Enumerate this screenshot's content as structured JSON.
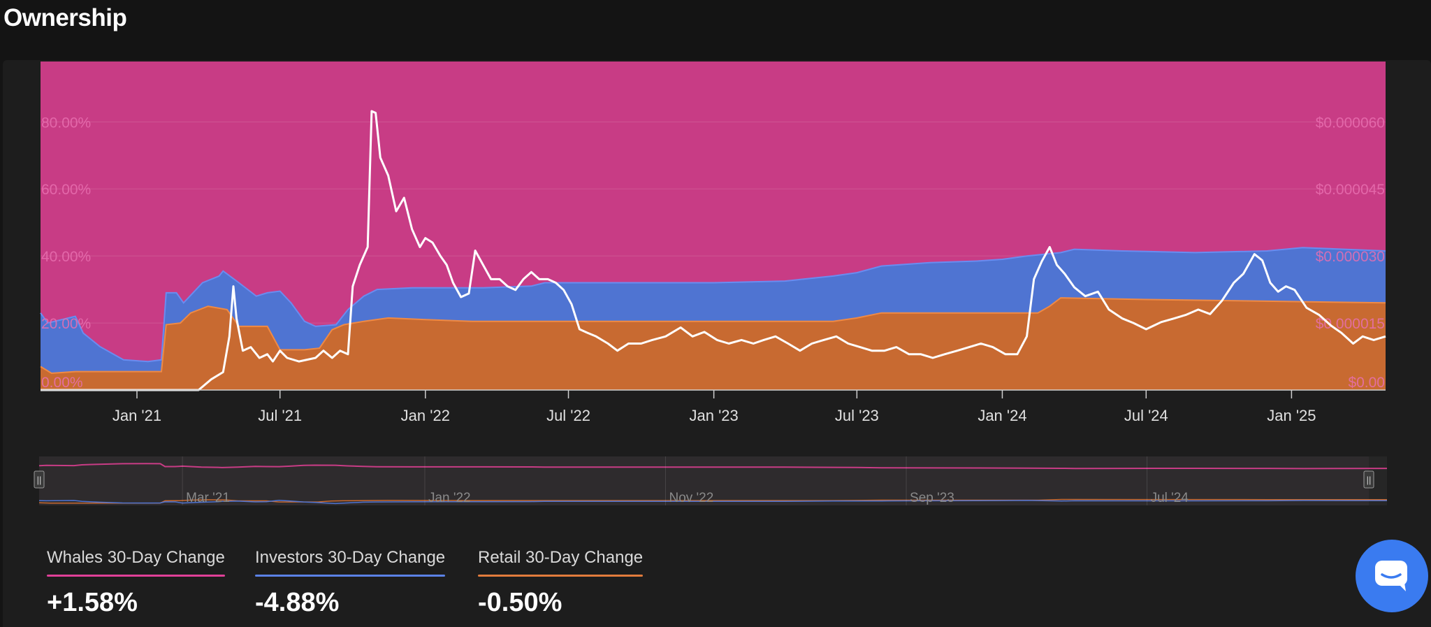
{
  "page_title": "Ownership",
  "colors": {
    "whales": "#c83c85",
    "investors": "#4f74d2",
    "retail": "#c86a31",
    "price": "#ffffff",
    "whales_underline": "#e04098",
    "investors_underline": "#5b82e6",
    "retail_underline": "#e27b3c",
    "left_axis_text": "#e86fb0",
    "right_axis_text": "#e86fb0",
    "chat_button": "#3a7bf0"
  },
  "chart_data": {
    "type": "area",
    "stacking": "stacked-percent",
    "x_ticks": [
      "Jan '21",
      "Jul '21",
      "Jan '22",
      "Jul '22",
      "Jan '23",
      "Jul '23",
      "Jan '24",
      "Jul '24",
      "Jan '25"
    ],
    "x_range": [
      "2020-09-01",
      "2025-04-30"
    ],
    "y_left_ticks": [
      "0.00%",
      "20.00%",
      "40.00%",
      "60.00%",
      "80.00%"
    ],
    "y_left_range": [
      0,
      98
    ],
    "y_right_ticks": [
      "$0.00",
      "$0.000015",
      "$0.000030",
      "$0.000045",
      "$0.000060"
    ],
    "y_right_range": [
      0,
      7.35e-05
    ],
    "grid": true,
    "retail_top_pct": [
      [
        "2020-09-01",
        7
      ],
      [
        "2020-09-15",
        5
      ],
      [
        "2020-10-15",
        5.5
      ],
      [
        "2020-12-01",
        5.5
      ],
      [
        "2021-02-01",
        5.5
      ],
      [
        "2021-02-07",
        19.5
      ],
      [
        "2021-02-25",
        20
      ],
      [
        "2021-03-10",
        23
      ],
      [
        "2021-04-01",
        25
      ],
      [
        "2021-04-25",
        24
      ],
      [
        "2021-05-10",
        19
      ],
      [
        "2021-06-15",
        19
      ],
      [
        "2021-07-01",
        12
      ],
      [
        "2021-08-01",
        12
      ],
      [
        "2021-08-20",
        12.5
      ],
      [
        "2021-09-05",
        18
      ],
      [
        "2021-09-20",
        19.5
      ],
      [
        "2021-10-15",
        20.5
      ],
      [
        "2021-11-15",
        21.5
      ],
      [
        "2022-01-01",
        21
      ],
      [
        "2022-03-01",
        20.5
      ],
      [
        "2022-06-01",
        20.5
      ],
      [
        "2022-09-01",
        20.5
      ],
      [
        "2023-01-01",
        20.5
      ],
      [
        "2023-03-01",
        20.5
      ],
      [
        "2023-06-01",
        20.5
      ],
      [
        "2023-07-01",
        21.5
      ],
      [
        "2023-08-01",
        23
      ],
      [
        "2023-12-01",
        23
      ],
      [
        "2024-01-01",
        23
      ],
      [
        "2024-02-15",
        23
      ],
      [
        "2024-03-01",
        25
      ],
      [
        "2024-03-15",
        27.5
      ],
      [
        "2024-07-01",
        27
      ],
      [
        "2024-12-01",
        26.5
      ],
      [
        "2025-04-30",
        26
      ]
    ],
    "investors_top_pct": [
      [
        "2020-09-01",
        23
      ],
      [
        "2020-09-10",
        20
      ],
      [
        "2020-10-15",
        22
      ],
      [
        "2020-10-25",
        17
      ],
      [
        "2020-11-15",
        13
      ],
      [
        "2020-12-15",
        9
      ],
      [
        "2021-01-15",
        8.5
      ],
      [
        "2021-02-01",
        9
      ],
      [
        "2021-02-07",
        29
      ],
      [
        "2021-02-20",
        29
      ],
      [
        "2021-03-01",
        26
      ],
      [
        "2021-03-25",
        32
      ],
      [
        "2021-04-15",
        34
      ],
      [
        "2021-04-20",
        35.5
      ],
      [
        "2021-05-10",
        32
      ],
      [
        "2021-06-01",
        28
      ],
      [
        "2021-06-15",
        29
      ],
      [
        "2021-07-01",
        29.5
      ],
      [
        "2021-07-15",
        26
      ],
      [
        "2021-08-01",
        20.5
      ],
      [
        "2021-08-15",
        19
      ],
      [
        "2021-09-10",
        19.5
      ],
      [
        "2021-09-25",
        24
      ],
      [
        "2021-10-15",
        28
      ],
      [
        "2021-11-01",
        30
      ],
      [
        "2021-12-15",
        30.5
      ],
      [
        "2022-03-15",
        30.5
      ],
      [
        "2022-05-15",
        31
      ],
      [
        "2022-06-01",
        32
      ],
      [
        "2022-07-15",
        32
      ],
      [
        "2022-10-01",
        32
      ],
      [
        "2023-01-01",
        32
      ],
      [
        "2023-04-01",
        32.5
      ],
      [
        "2023-06-01",
        34
      ],
      [
        "2023-07-01",
        35
      ],
      [
        "2023-08-01",
        37
      ],
      [
        "2023-10-01",
        38
      ],
      [
        "2023-12-01",
        38.5
      ],
      [
        "2024-01-01",
        39
      ],
      [
        "2024-02-01",
        40
      ],
      [
        "2024-03-15",
        41
      ],
      [
        "2024-04-01",
        42
      ],
      [
        "2024-06-01",
        41.5
      ],
      [
        "2024-09-01",
        41
      ],
      [
        "2024-12-01",
        41.5
      ],
      [
        "2025-01-15",
        42.5
      ],
      [
        "2025-04-30",
        41.5
      ]
    ],
    "price_usd": [
      [
        "2020-09-01",
        0
      ],
      [
        "2021-03-01",
        0
      ],
      [
        "2021-03-20",
        0
      ],
      [
        "2021-04-05",
        2.4e-06
      ],
      [
        "2021-04-20",
        4e-06
      ],
      [
        "2021-04-28",
        1.2e-05
      ],
      [
        "2021-05-03",
        2.32e-05
      ],
      [
        "2021-05-07",
        1.6e-05
      ],
      [
        "2021-05-15",
        8.8e-06
      ],
      [
        "2021-05-25",
        9.6e-06
      ],
      [
        "2021-06-05",
        7.2e-06
      ],
      [
        "2021-06-15",
        8e-06
      ],
      [
        "2021-06-22",
        6.4e-06
      ],
      [
        "2021-07-01",
        8.8e-06
      ],
      [
        "2021-07-10",
        7.2e-06
      ],
      [
        "2021-07-25",
        6.4e-06
      ],
      [
        "2021-08-15",
        7.2e-06
      ],
      [
        "2021-08-25",
        8.8e-06
      ],
      [
        "2021-09-05",
        7.2e-06
      ],
      [
        "2021-09-15",
        8.8e-06
      ],
      [
        "2021-09-25",
        8e-06
      ],
      [
        "2021-10-01",
        2.32e-05
      ],
      [
        "2021-10-10",
        2.8e-05
      ],
      [
        "2021-10-20",
        3.2e-05
      ],
      [
        "2021-10-25",
        6.24e-05
      ],
      [
        "2021-10-30",
        6.2e-05
      ],
      [
        "2021-11-05",
        5.2e-05
      ],
      [
        "2021-11-15",
        4.8e-05
      ],
      [
        "2021-11-25",
        4e-05
      ],
      [
        "2021-12-05",
        4.3e-05
      ],
      [
        "2021-12-15",
        3.6e-05
      ],
      [
        "2021-12-25",
        3.2e-05
      ],
      [
        "2022-01-01",
        3.4e-05
      ],
      [
        "2022-01-10",
        3.3e-05
      ],
      [
        "2022-01-20",
        3e-05
      ],
      [
        "2022-01-28",
        2.8e-05
      ],
      [
        "2022-02-05",
        2.4e-05
      ],
      [
        "2022-02-15",
        2.08e-05
      ],
      [
        "2022-02-25",
        2.16e-05
      ],
      [
        "2022-03-05",
        3.12e-05
      ],
      [
        "2022-03-15",
        2.8e-05
      ],
      [
        "2022-03-25",
        2.48e-05
      ],
      [
        "2022-04-05",
        2.48e-05
      ],
      [
        "2022-04-15",
        2.32e-05
      ],
      [
        "2022-04-25",
        2.24e-05
      ],
      [
        "2022-05-05",
        2.48e-05
      ],
      [
        "2022-05-15",
        2.64e-05
      ],
      [
        "2022-05-25",
        2.48e-05
      ],
      [
        "2022-06-05",
        2.48e-05
      ],
      [
        "2022-06-15",
        2.4e-05
      ],
      [
        "2022-06-25",
        2.24e-05
      ],
      [
        "2022-07-05",
        1.92e-05
      ],
      [
        "2022-07-15",
        1.36e-05
      ],
      [
        "2022-07-25",
        1.28e-05
      ],
      [
        "2022-08-05",
        1.2e-05
      ],
      [
        "2022-08-20",
        1.04e-05
      ],
      [
        "2022-09-01",
        8.8e-06
      ],
      [
        "2022-09-15",
        1.04e-05
      ],
      [
        "2022-10-01",
        1.04e-05
      ],
      [
        "2022-10-15",
        1.12e-05
      ],
      [
        "2022-11-01",
        1.2e-05
      ],
      [
        "2022-11-20",
        1.4e-05
      ],
      [
        "2022-12-05",
        1.2e-05
      ],
      [
        "2022-12-20",
        1.3e-05
      ],
      [
        "2023-01-05",
        1.12e-05
      ],
      [
        "2023-01-20",
        1.04e-05
      ],
      [
        "2023-02-05",
        1.12e-05
      ],
      [
        "2023-02-20",
        1.04e-05
      ],
      [
        "2023-03-05",
        1.12e-05
      ],
      [
        "2023-03-20",
        1.2e-05
      ],
      [
        "2023-04-05",
        1.04e-05
      ],
      [
        "2023-04-20",
        8.8e-06
      ],
      [
        "2023-05-05",
        1.04e-05
      ],
      [
        "2023-05-20",
        1.12e-05
      ],
      [
        "2023-06-05",
        1.2e-05
      ],
      [
        "2023-06-20",
        1.04e-05
      ],
      [
        "2023-07-05",
        9.6e-06
      ],
      [
        "2023-07-20",
        8.8e-06
      ],
      [
        "2023-08-05",
        8.8e-06
      ],
      [
        "2023-08-20",
        9.6e-06
      ],
      [
        "2023-09-05",
        8e-06
      ],
      [
        "2023-09-20",
        8e-06
      ],
      [
        "2023-10-05",
        7.2e-06
      ],
      [
        "2023-10-20",
        8e-06
      ],
      [
        "2023-11-05",
        8.8e-06
      ],
      [
        "2023-11-20",
        9.6e-06
      ],
      [
        "2023-12-05",
        1.04e-05
      ],
      [
        "2023-12-20",
        9.6e-06
      ],
      [
        "2024-01-05",
        8e-06
      ],
      [
        "2024-01-20",
        8e-06
      ],
      [
        "2024-02-01",
        1.2e-05
      ],
      [
        "2024-02-10",
        2.48e-05
      ],
      [
        "2024-02-20",
        2.88e-05
      ],
      [
        "2024-03-01",
        3.2e-05
      ],
      [
        "2024-03-10",
        2.8e-05
      ],
      [
        "2024-03-20",
        2.6e-05
      ],
      [
        "2024-04-01",
        2.3e-05
      ],
      [
        "2024-04-15",
        2.1e-05
      ],
      [
        "2024-05-01",
        2.2e-05
      ],
      [
        "2024-05-15",
        1.8e-05
      ],
      [
        "2024-06-01",
        1.6e-05
      ],
      [
        "2024-06-15",
        1.5e-05
      ],
      [
        "2024-07-01",
        1.36e-05
      ],
      [
        "2024-07-20",
        1.52e-05
      ],
      [
        "2024-08-05",
        1.6e-05
      ],
      [
        "2024-08-20",
        1.68e-05
      ],
      [
        "2024-09-05",
        1.8e-05
      ],
      [
        "2024-09-20",
        1.7e-05
      ],
      [
        "2024-10-05",
        2e-05
      ],
      [
        "2024-10-20",
        2.4e-05
      ],
      [
        "2024-11-01",
        2.6e-05
      ],
      [
        "2024-11-15",
        3.04e-05
      ],
      [
        "2024-11-25",
        2.9e-05
      ],
      [
        "2024-12-05",
        2.4e-05
      ],
      [
        "2024-12-15",
        2.2e-05
      ],
      [
        "2024-12-25",
        2.32e-05
      ],
      [
        "2025-01-05",
        2.24e-05
      ],
      [
        "2025-01-20",
        1.84e-05
      ],
      [
        "2025-02-05",
        1.68e-05
      ],
      [
        "2025-02-20",
        1.44e-05
      ],
      [
        "2025-03-05",
        1.28e-05
      ],
      [
        "2025-03-20",
        1.04e-05
      ],
      [
        "2025-04-01",
        1.2e-05
      ],
      [
        "2025-04-15",
        1.12e-05
      ],
      [
        "2025-04-30",
        1.2e-05
      ]
    ]
  },
  "navigator": {
    "labels": [
      "Mar '21",
      "Jan '22",
      "Nov '22",
      "Sep '23",
      "Jul '24"
    ],
    "label_dates": [
      "2021-03-01",
      "2022-01-01",
      "2022-11-01",
      "2023-09-01",
      "2024-07-01"
    ],
    "handle_glyph": "||"
  },
  "stats": [
    {
      "label": "Whales 30-Day Change",
      "value": "+1.58%"
    },
    {
      "label": "Investors 30-Day Change",
      "value": "-4.88%"
    },
    {
      "label": "Retail 30-Day Change",
      "value": "-0.50%"
    }
  ],
  "chat_button": {
    "icon": "chat-bubble-icon"
  }
}
